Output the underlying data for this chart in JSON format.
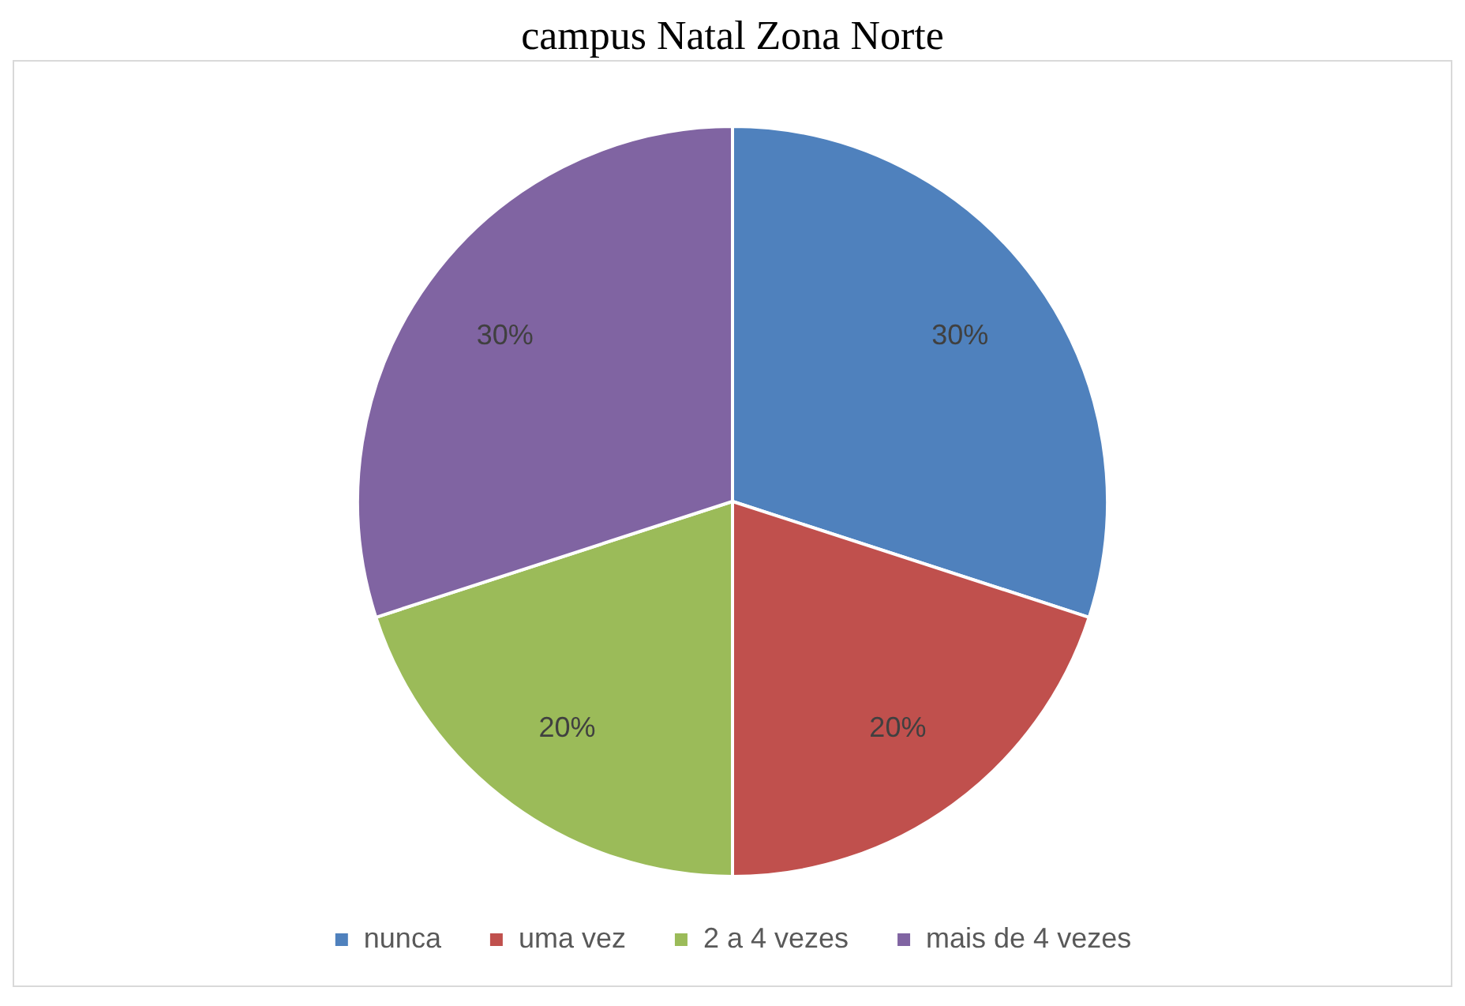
{
  "chart_data": {
    "type": "pie",
    "title": "campus Natal Zona Norte",
    "categories": [
      "nunca",
      "uma vez",
      "2 a 4 vezes",
      "mais de 4 vezes"
    ],
    "values": [
      30,
      20,
      20,
      30
    ],
    "colors": [
      "#4f81bd",
      "#c0504d",
      "#9bbb59",
      "#8064a2"
    ],
    "value_labels": [
      "30%",
      "20%",
      "20%",
      "30%"
    ],
    "legend": "bottom"
  }
}
